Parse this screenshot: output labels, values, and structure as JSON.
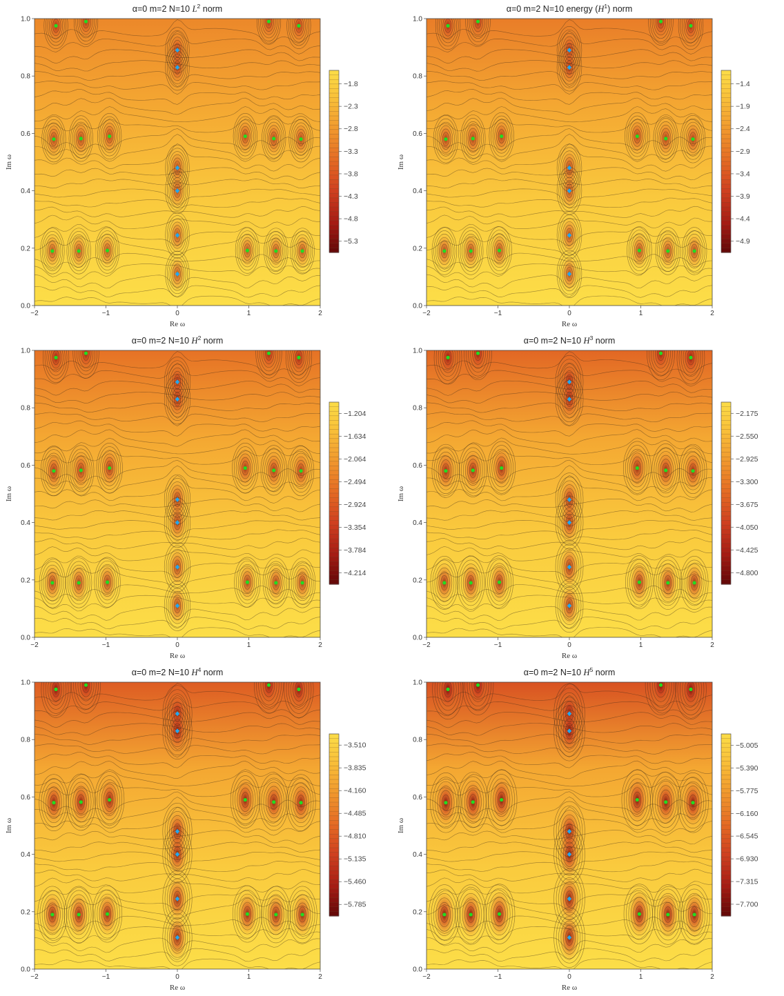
{
  "chart_data": [
    {
      "type": "heatmap",
      "title": "α=0   m=2   N=10   L² norm",
      "title_pre": "α=0   m=2   N=10   ",
      "title_norm": "L",
      "title_sup": "2",
      "title_post": " norm",
      "xlabel": "Re ω",
      "ylabel": "Im ω",
      "xlim": [
        -2,
        2
      ],
      "ylim": [
        0,
        1
      ],
      "xticks": [
        "−2",
        "−1",
        "0",
        "1",
        "2"
      ],
      "yticks": [
        "0.0",
        "0.2",
        "0.4",
        "0.6",
        "0.8",
        "1.0"
      ],
      "colorbar_ticks": [
        "−1.8",
        "−2.3",
        "−2.8",
        "−3.3",
        "−3.8",
        "−4.3",
        "−4.8",
        "−5.3"
      ],
      "colorbar_range": [
        -5.55,
        -1.5
      ],
      "sharpness": 0.35
    },
    {
      "type": "heatmap",
      "title": "α=0   m=2   N=10   energy (H¹) norm",
      "title_pre": "α=0   m=2   N=10   energy (",
      "title_norm": "H",
      "title_sup": "1",
      "title_post": ") norm",
      "xlabel": "Re ω",
      "ylabel": "Im ω",
      "xlim": [
        -2,
        2
      ],
      "ylim": [
        0,
        1
      ],
      "xticks": [
        "−2",
        "−1",
        "0",
        "1",
        "2"
      ],
      "yticks": [
        "0.0",
        "0.2",
        "0.4",
        "0.6",
        "0.8",
        "1.0"
      ],
      "colorbar_ticks": [
        "−1.4",
        "−1.9",
        "−2.4",
        "−2.9",
        "−3.4",
        "−3.9",
        "−4.4",
        "−4.9"
      ],
      "colorbar_range": [
        -5.15,
        -1.1
      ],
      "sharpness": 0.45
    },
    {
      "type": "heatmap",
      "title": "α=0   m=2   N=10   H² norm",
      "title_pre": "α=0   m=2   N=10   ",
      "title_norm": "H",
      "title_sup": "2",
      "title_post": " norm",
      "xlabel": "Re ω",
      "ylabel": "Im ω",
      "xlim": [
        -2,
        2
      ],
      "ylim": [
        0,
        1
      ],
      "xticks": [
        "−2",
        "−1",
        "0",
        "1",
        "2"
      ],
      "yticks": [
        "0.0",
        "0.2",
        "0.4",
        "0.6",
        "0.8",
        "1.0"
      ],
      "colorbar_ticks": [
        "−1.204",
        "−1.634",
        "−2.064",
        "−2.494",
        "−2.924",
        "−3.354",
        "−3.784",
        "−4.214"
      ],
      "colorbar_range": [
        -4.43,
        -0.99
      ],
      "sharpness": 0.6
    },
    {
      "type": "heatmap",
      "title": "α=0   m=2   N=10   H³ norm",
      "title_pre": "α=0   m=2   N=10   ",
      "title_norm": "H",
      "title_sup": "3",
      "title_post": " norm",
      "xlabel": "Re ω",
      "ylabel": "Im ω",
      "xlim": [
        -2,
        2
      ],
      "ylim": [
        0,
        1
      ],
      "xticks": [
        "−2",
        "−1",
        "0",
        "1",
        "2"
      ],
      "yticks": [
        "0.0",
        "0.2",
        "0.4",
        "0.6",
        "0.8",
        "1.0"
      ],
      "colorbar_ticks": [
        "−2.175",
        "−2.550",
        "−2.925",
        "−3.300",
        "−3.675",
        "−4.050",
        "−4.425",
        "−4.800"
      ],
      "colorbar_range": [
        -4.99,
        -1.99
      ],
      "sharpness": 0.8
    },
    {
      "type": "heatmap",
      "title": "α=0   m=2   N=10   H⁴ norm",
      "title_pre": "α=0   m=2   N=10   ",
      "title_norm": "H",
      "title_sup": "4",
      "title_post": " norm",
      "xlabel": "Re ω",
      "ylabel": "Im ω",
      "xlim": [
        -2,
        2
      ],
      "ylim": [
        0,
        1
      ],
      "xticks": [
        "−2",
        "−1",
        "0",
        "1",
        "2"
      ],
      "yticks": [
        "0.0",
        "0.2",
        "0.4",
        "0.6",
        "0.8",
        "1.0"
      ],
      "colorbar_ticks": [
        "−3.510",
        "−3.835",
        "−4.160",
        "−4.485",
        "−4.810",
        "−5.135",
        "−5.460",
        "−5.785"
      ],
      "colorbar_range": [
        -5.95,
        -3.35
      ],
      "sharpness": 1.0
    },
    {
      "type": "heatmap",
      "title": "α=0   m=2   N=10   H⁵ norm",
      "title_pre": "α=0   m=2   N=10   ",
      "title_norm": "H",
      "title_sup": "5",
      "title_post": " norm",
      "xlabel": "Re ω",
      "ylabel": "Im ω",
      "xlim": [
        -2,
        2
      ],
      "ylim": [
        0,
        1
      ],
      "xticks": [
        "−2",
        "−1",
        "0",
        "1",
        "2"
      ],
      "yticks": [
        "0.0",
        "0.2",
        "0.4",
        "0.6",
        "0.8",
        "1.0"
      ],
      "colorbar_ticks": [
        "−5.005",
        "−5.390",
        "−5.775",
        "−6.160",
        "−6.545",
        "−6.930",
        "−7.315",
        "−7.700"
      ],
      "colorbar_range": [
        -7.9,
        -4.81
      ],
      "sharpness": 1.2
    }
  ],
  "markers": {
    "green_points": [
      [
        -1.7,
        0.975
      ],
      [
        -1.28,
        0.99
      ],
      [
        1.28,
        0.99
      ],
      [
        1.7,
        0.975
      ],
      [
        -1.73,
        0.58
      ],
      [
        -1.35,
        0.582
      ],
      [
        -0.95,
        0.59
      ],
      [
        0.95,
        0.59
      ],
      [
        1.35,
        0.582
      ],
      [
        1.73,
        0.58
      ],
      [
        -1.75,
        0.19
      ],
      [
        -1.38,
        0.19
      ],
      [
        -0.98,
        0.192
      ],
      [
        0.98,
        0.192
      ],
      [
        1.38,
        0.19
      ],
      [
        1.75,
        0.19
      ]
    ],
    "blue_points": [
      [
        0,
        0.89
      ],
      [
        0,
        0.83
      ],
      [
        0,
        0.48
      ],
      [
        0,
        0.4
      ],
      [
        0,
        0.245
      ],
      [
        0,
        0.11
      ]
    ],
    "green_color": "#22dd22",
    "blue_color": "#22a8ee"
  },
  "colormap": [
    "#fce24a",
    "#f9c23a",
    "#f19a2e",
    "#e56c24",
    "#cf4020",
    "#a61c14",
    "#5e0606"
  ]
}
